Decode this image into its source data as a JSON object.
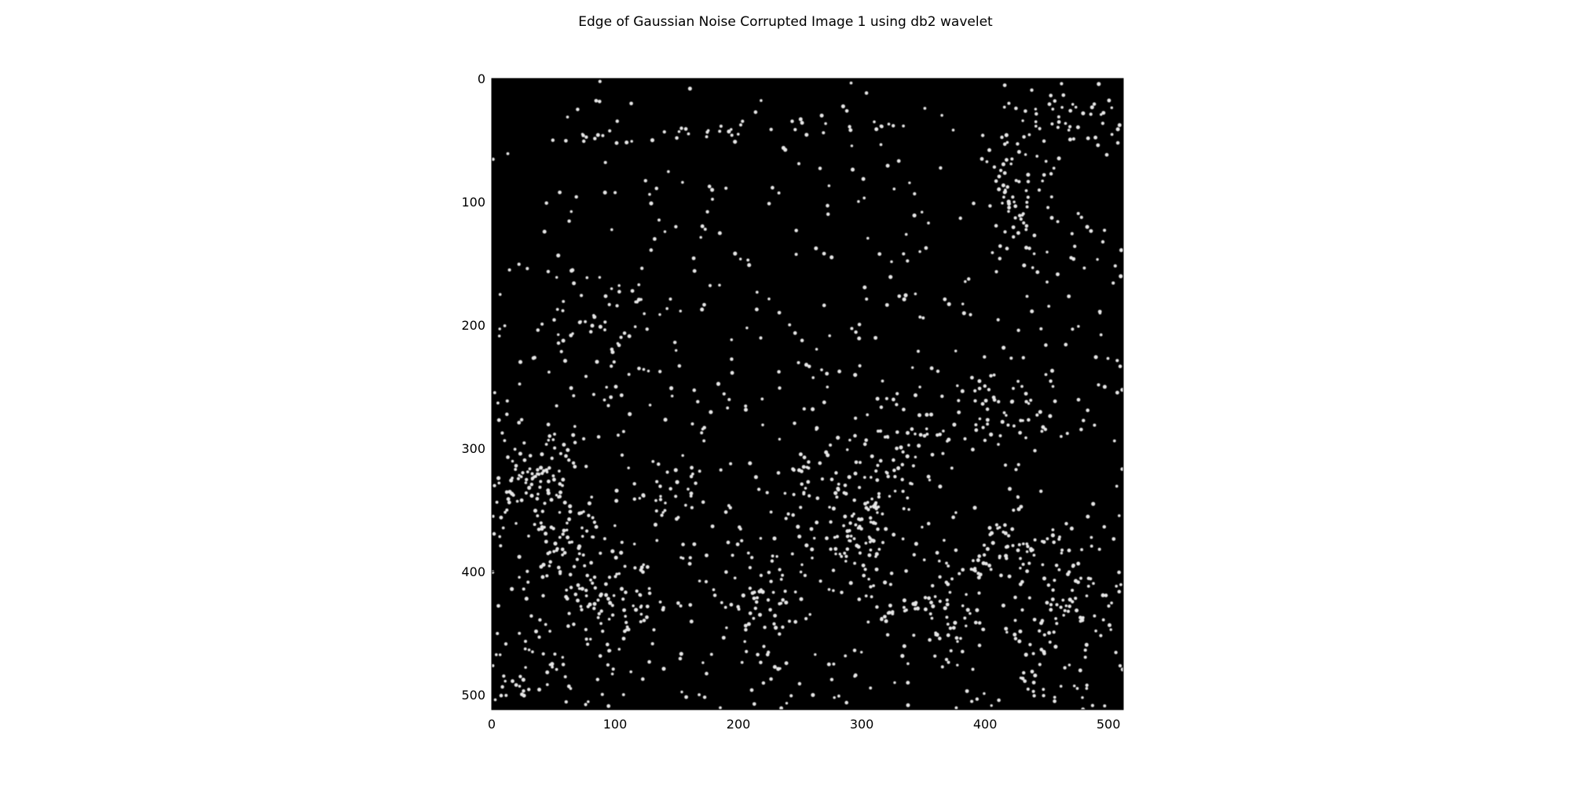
{
  "chart_data": {
    "type": "heatmap",
    "title": "Edge of Gaussian Noise Corrupted Image 1 using  db2 wavelet",
    "xlabel": "",
    "ylabel": "",
    "xlim": [
      0,
      512
    ],
    "ylim": [
      512,
      0
    ],
    "x_ticks": [
      0,
      100,
      200,
      300,
      400,
      500
    ],
    "y_ticks": [
      0,
      100,
      200,
      300,
      400,
      500
    ],
    "grid": false,
    "colormap": "gray",
    "background_color": "#000000",
    "dot_color": "#e6e6e6",
    "pattern": "sparse bright edge points on black background, denser in lower half",
    "approx_point_count": 1500
  }
}
